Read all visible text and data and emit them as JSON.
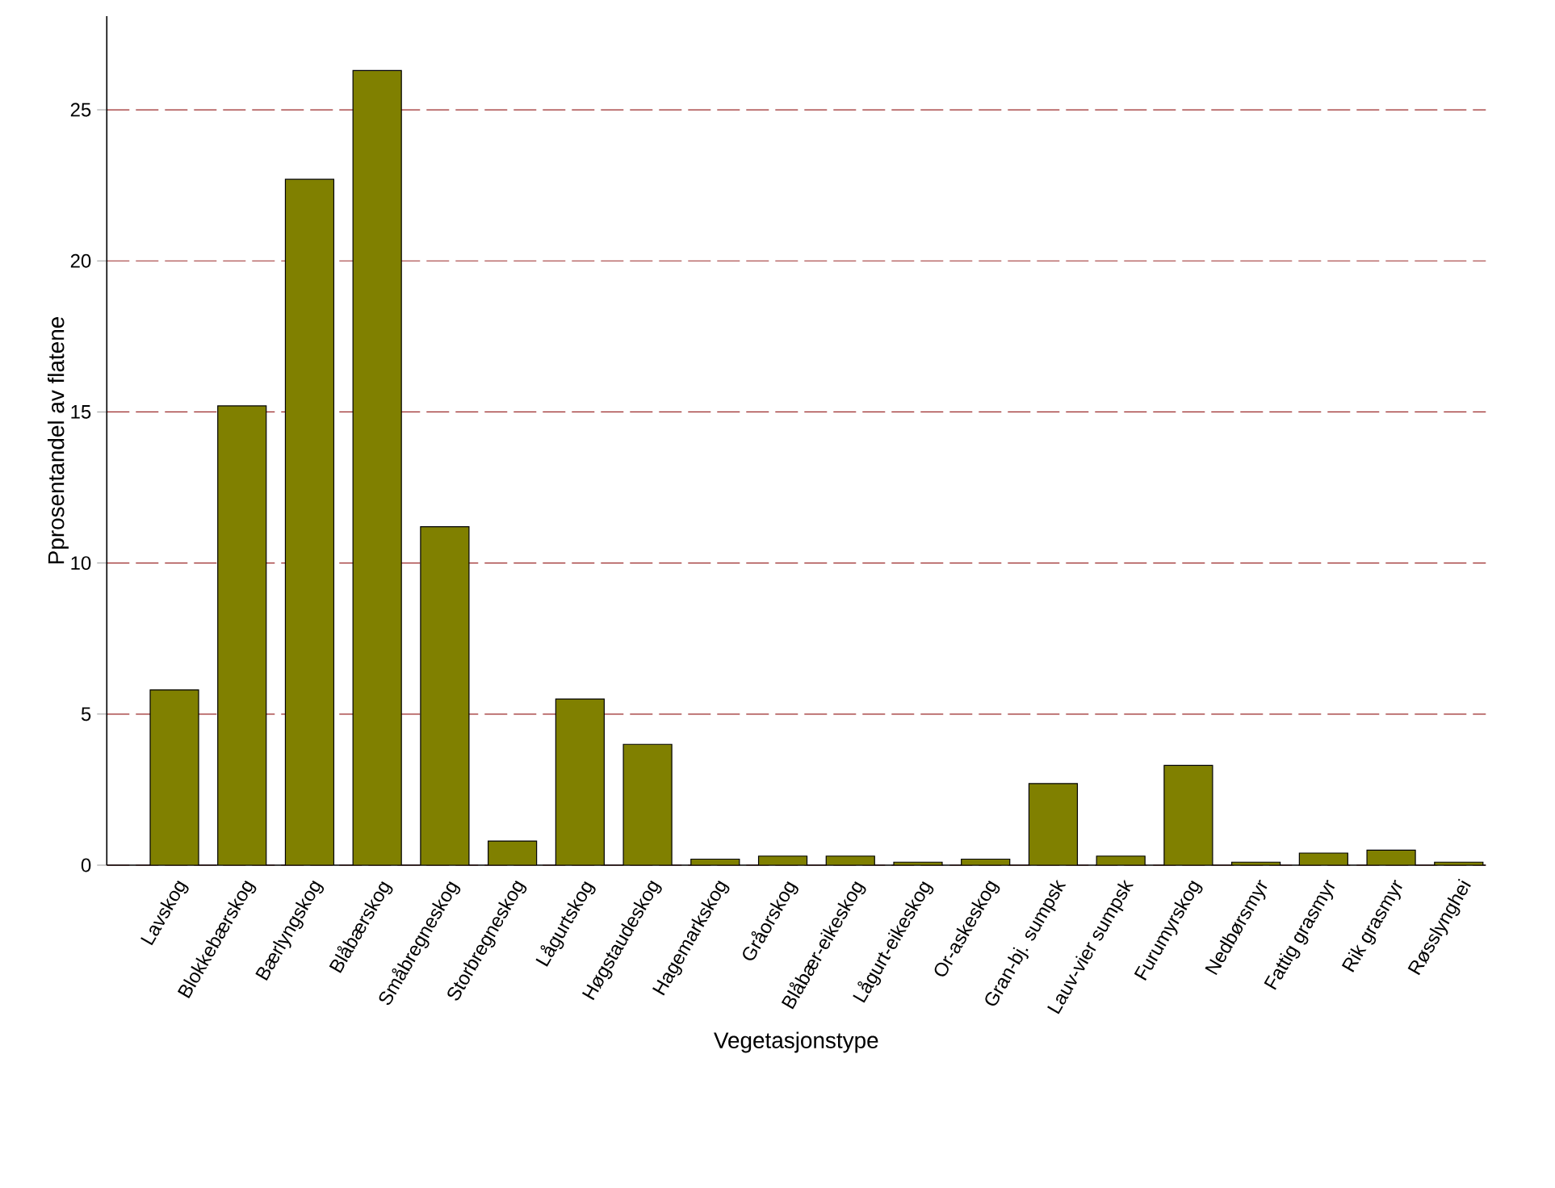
{
  "chart_data": {
    "type": "bar",
    "xlabel": "Vegetasjonstype",
    "ylabel": "Pprosentandel av flatene",
    "categories": [
      "Lavskog",
      "Blokkebærskog",
      "Bærlyngskog",
      "Blåbærskog",
      "Småbregneskog",
      "Storbregneskog",
      "Lågurtskog",
      "Høgstaudeskog",
      "Hagemarkskog",
      "Gråorskog",
      "Blåbær-eikeskog",
      "Lågurt-eikeskog",
      "Or-askeskog",
      "Gran-bj. sumpsk",
      "Lauv-vier sumpsk",
      "Furumyrskog",
      "Nedbørsmyr",
      "Fattig grasmyr",
      "Rik grasmyr",
      "Røsslynghei"
    ],
    "values": [
      5.8,
      15.2,
      22.7,
      26.3,
      11.2,
      0.8,
      5.5,
      4.0,
      0.2,
      0.3,
      0.3,
      0.1,
      0.2,
      2.7,
      0.3,
      3.3,
      0.1,
      0.4,
      0.5,
      0.1
    ],
    "color": "#808000",
    "ylim": [
      0,
      28.1
    ],
    "yticks": [
      0,
      5,
      10,
      15,
      20,
      25
    ],
    "grid": "y"
  }
}
